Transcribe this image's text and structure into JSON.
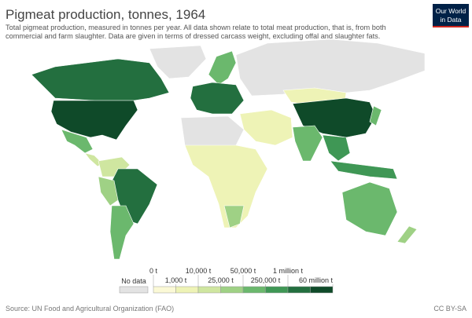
{
  "header": {
    "title": "Pigmeat production, tonnes, 1964",
    "subtitle_lines": [
      "Total pigmeat production, measured in tonnes per year. All data shown relate to total meat production, that is, from both",
      "commercial and farm slaughter. Data are given in terms of dressed carcass weight, excluding offal and slaughter fats."
    ],
    "logo_lines": [
      "Our World",
      "in Data"
    ]
  },
  "legend": {
    "no_data_label": "No data",
    "no_data_color": "#e3e3e3",
    "labels": [
      "0 t",
      "1,000 t",
      "10,000 t",
      "25,000 t",
      "50,000 t",
      "250,000 t",
      "1 million t",
      "60 million t"
    ],
    "colors": [
      "#fbf9d6",
      "#eef3b6",
      "#cfe6a0",
      "#9fd185",
      "#6bb86d",
      "#3f9755",
      "#236f3f",
      "#0f4a29"
    ]
  },
  "footer": {
    "source": "Source: UN Food and Agricultural Organization (FAO)",
    "license": "CC BY-SA"
  }
}
